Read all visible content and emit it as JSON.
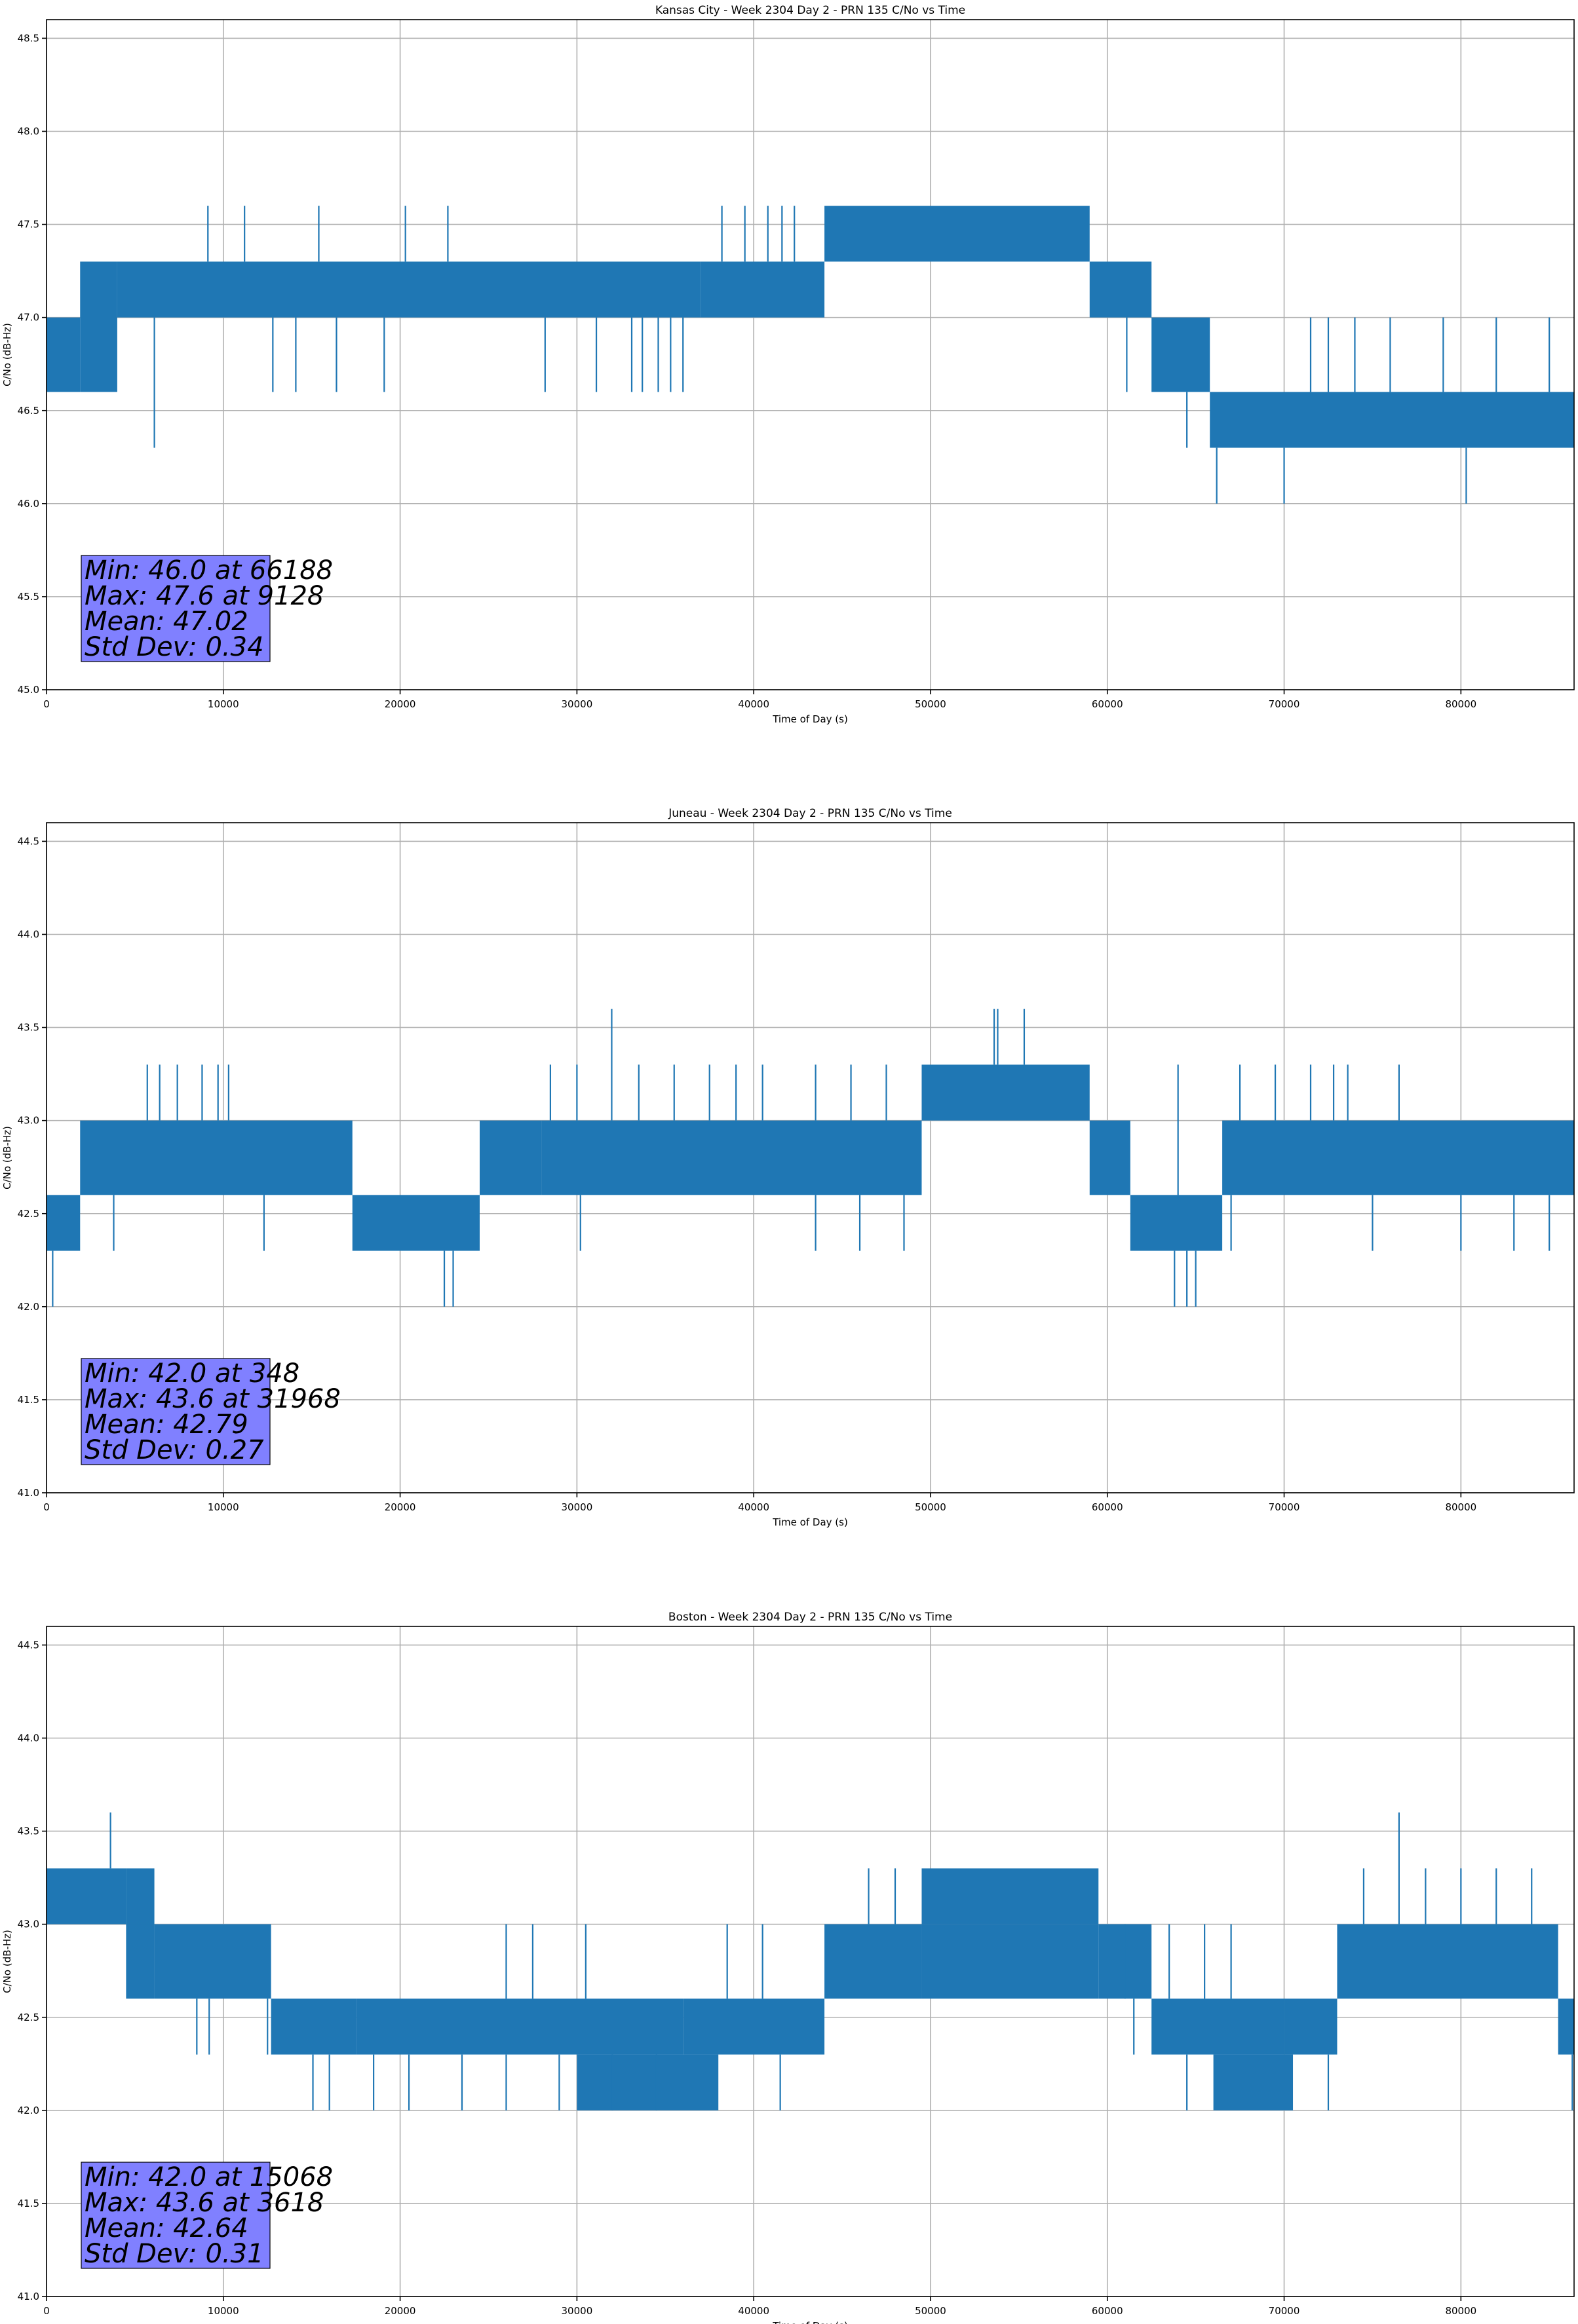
{
  "colors": {
    "line": "#1f77b4",
    "grid": "#b0b0b0",
    "stats_box": "#8080ff",
    "text": "#000000"
  },
  "chart_data": [
    {
      "type": "line",
      "title": "Kansas City - Week 2304 Day 2 - PRN 135 C/No vs Time",
      "xlabel": "Time of Day (s)",
      "ylabel": "C/No (dB-Hz)",
      "xlim": [
        0,
        86400
      ],
      "ylim": [
        45.0,
        48.6
      ],
      "xticks": [
        0,
        10000,
        20000,
        30000,
        40000,
        50000,
        60000,
        70000,
        80000
      ],
      "yticks": [
        45.0,
        45.5,
        46.0,
        46.5,
        47.0,
        47.5,
        48.0,
        48.5
      ],
      "grid": true,
      "stats": [
        "Min: 46.0 at 66188",
        "Max: 47.6 at 9128",
        "Mean: 47.02",
        "Std Dev: 0.34"
      ],
      "segments": [
        {
          "x": [
            0,
            1900
          ],
          "lo": 46.6,
          "hi": 47.0
        },
        {
          "x": [
            1900,
            4000
          ],
          "lo": 46.6,
          "hi": 47.3
        },
        {
          "x": [
            4000,
            37000
          ],
          "lo": 47.0,
          "hi": 47.3
        },
        {
          "x": [
            37000,
            44000
          ],
          "lo": 47.0,
          "hi": 47.3
        },
        {
          "x": [
            44000,
            59000
          ],
          "lo": 47.3,
          "hi": 47.6
        },
        {
          "x": [
            59000,
            62500
          ],
          "lo": 47.0,
          "hi": 47.3
        },
        {
          "x": [
            62500,
            65800
          ],
          "lo": 46.6,
          "hi": 47.0
        },
        {
          "x": [
            65800,
            86400
          ],
          "lo": 46.3,
          "hi": 46.6
        }
      ],
      "spikes": [
        [
          9128,
          47.6
        ],
        [
          11200,
          47.6
        ],
        [
          15400,
          47.6
        ],
        [
          20300,
          47.6
        ],
        [
          22700,
          47.6
        ],
        [
          38200,
          47.6
        ],
        [
          39500,
          47.6
        ],
        [
          40800,
          47.6
        ],
        [
          41600,
          47.6
        ],
        [
          42300,
          47.6
        ],
        [
          6100,
          46.3
        ],
        [
          12800,
          46.6
        ],
        [
          14100,
          46.6
        ],
        [
          16400,
          46.6
        ],
        [
          19100,
          46.6
        ],
        [
          28200,
          46.6
        ],
        [
          31100,
          46.6
        ],
        [
          33100,
          46.6
        ],
        [
          33700,
          46.6
        ],
        [
          34600,
          46.6
        ],
        [
          35300,
          46.6
        ],
        [
          36000,
          46.6
        ],
        [
          61100,
          46.6
        ],
        [
          64500,
          46.3
        ],
        [
          66188,
          46.0
        ],
        [
          70000,
          46.0
        ],
        [
          80300,
          46.0
        ],
        [
          74000,
          47.0
        ],
        [
          76000,
          47.0
        ],
        [
          79000,
          47.0
        ],
        [
          82000,
          47.0
        ],
        [
          85000,
          47.0
        ],
        [
          71500,
          47.0
        ],
        [
          72500,
          47.0
        ],
        [
          85400,
          46.3
        ]
      ]
    },
    {
      "type": "line",
      "title": "Juneau - Week 2304 Day 2 - PRN 135 C/No vs Time",
      "xlabel": "Time of Day (s)",
      "ylabel": "C/No (dB-Hz)",
      "xlim": [
        0,
        86400
      ],
      "ylim": [
        41.0,
        44.6
      ],
      "xticks": [
        0,
        10000,
        20000,
        30000,
        40000,
        50000,
        60000,
        70000,
        80000
      ],
      "yticks": [
        41.0,
        41.5,
        42.0,
        42.5,
        43.0,
        43.5,
        44.0,
        44.5
      ],
      "grid": true,
      "stats": [
        "Min: 42.0 at 348",
        "Max: 43.6 at 31968",
        "Mean: 42.79",
        "Std Dev: 0.27"
      ],
      "segments": [
        {
          "x": [
            0,
            1900
          ],
          "lo": 42.3,
          "hi": 42.6
        },
        {
          "x": [
            1900,
            17300
          ],
          "lo": 42.6,
          "hi": 43.0
        },
        {
          "x": [
            17300,
            24500
          ],
          "lo": 42.3,
          "hi": 42.6
        },
        {
          "x": [
            24500,
            28000
          ],
          "lo": 42.6,
          "hi": 43.0
        },
        {
          "x": [
            28000,
            49500
          ],
          "lo": 42.6,
          "hi": 43.0
        },
        {
          "x": [
            49500,
            59000
          ],
          "lo": 43.0,
          "hi": 43.3
        },
        {
          "x": [
            59000,
            61300
          ],
          "lo": 42.6,
          "hi": 43.0
        },
        {
          "x": [
            61300,
            66500
          ],
          "lo": 42.3,
          "hi": 42.6
        },
        {
          "x": [
            66500,
            86400
          ],
          "lo": 42.6,
          "hi": 43.0
        }
      ],
      "spikes": [
        [
          348,
          42.0
        ],
        [
          5700,
          43.3
        ],
        [
          6400,
          43.3
        ],
        [
          7400,
          43.3
        ],
        [
          8800,
          43.3
        ],
        [
          9700,
          43.3
        ],
        [
          10300,
          43.3
        ],
        [
          28500,
          43.3
        ],
        [
          30000,
          43.3
        ],
        [
          31968,
          43.6
        ],
        [
          33500,
          43.3
        ],
        [
          35500,
          43.3
        ],
        [
          37500,
          43.3
        ],
        [
          39000,
          43.3
        ],
        [
          40500,
          43.3
        ],
        [
          43500,
          43.3
        ],
        [
          45500,
          43.3
        ],
        [
          47500,
          43.3
        ],
        [
          53600,
          43.6
        ],
        [
          53800,
          43.6
        ],
        [
          55300,
          43.6
        ],
        [
          64000,
          43.3
        ],
        [
          67500,
          43.3
        ],
        [
          69500,
          43.3
        ],
        [
          71500,
          43.3
        ],
        [
          72800,
          43.3
        ],
        [
          73600,
          43.3
        ],
        [
          76500,
          43.3
        ],
        [
          3800,
          42.3
        ],
        [
          12300,
          42.3
        ],
        [
          22500,
          42.0
        ],
        [
          23000,
          42.0
        ],
        [
          30200,
          42.3
        ],
        [
          43500,
          42.3
        ],
        [
          46000,
          42.3
        ],
        [
          48500,
          42.3
        ],
        [
          63800,
          42.0
        ],
        [
          64500,
          42.0
        ],
        [
          65000,
          42.0
        ],
        [
          67000,
          42.3
        ],
        [
          75000,
          42.3
        ],
        [
          80000,
          42.3
        ],
        [
          83000,
          42.3
        ],
        [
          85000,
          42.3
        ]
      ]
    },
    {
      "type": "line",
      "title": "Boston - Week 2304 Day 2 - PRN 135 C/No vs Time",
      "xlabel": "Time of Day (s)",
      "ylabel": "C/No (dB-Hz)",
      "xlim": [
        0,
        86400
      ],
      "ylim": [
        41.0,
        44.6
      ],
      "xticks": [
        0,
        10000,
        20000,
        30000,
        40000,
        50000,
        60000,
        70000,
        80000
      ],
      "yticks": [
        41.0,
        41.5,
        42.0,
        42.5,
        43.0,
        43.5,
        44.0,
        44.5
      ],
      "grid": true,
      "stats": [
        "Min: 42.0 at 15068",
        "Max: 43.6 at 3618",
        "Mean: 42.64",
        "Std Dev: 0.31"
      ],
      "segments": [
        {
          "x": [
            0,
            4500
          ],
          "lo": 43.0,
          "hi": 43.3
        },
        {
          "x": [
            4500,
            6100
          ],
          "lo": 42.6,
          "hi": 43.3
        },
        {
          "x": [
            6100,
            12700
          ],
          "lo": 42.6,
          "hi": 43.0
        },
        {
          "x": [
            12700,
            17500
          ],
          "lo": 42.3,
          "hi": 42.6
        },
        {
          "x": [
            17500,
            36000
          ],
          "lo": 42.3,
          "hi": 42.6
        },
        {
          "x": [
            36000,
            44000
          ],
          "lo": 42.3,
          "hi": 42.6
        },
        {
          "x": [
            44000,
            49500
          ],
          "lo": 42.6,
          "hi": 43.0
        },
        {
          "x": [
            49500,
            59500
          ],
          "lo": 42.6,
          "hi": 43.0
        },
        {
          "x": [
            59500,
            62500
          ],
          "lo": 42.6,
          "hi": 43.0
        },
        {
          "x": [
            62500,
            70000
          ],
          "lo": 42.3,
          "hi": 42.6
        },
        {
          "x": [
            70000,
            73000
          ],
          "lo": 42.3,
          "hi": 42.6
        },
        {
          "x": [
            73000,
            85500
          ],
          "lo": 42.6,
          "hi": 43.0
        },
        {
          "x": [
            85500,
            86400
          ],
          "lo": 42.3,
          "hi": 42.6
        }
      ],
      "bands": [
        {
          "x": [
            49500,
            59500
          ],
          "lo": 43.0,
          "hi": 43.3
        },
        {
          "x": [
            66000,
            70500
          ],
          "lo": 42.0,
          "hi": 42.3
        },
        {
          "x": [
            30000,
            38000
          ],
          "lo": 42.0,
          "hi": 42.3
        }
      ],
      "spikes": [
        [
          3618,
          43.6
        ],
        [
          8500,
          42.3
        ],
        [
          9200,
          42.3
        ],
        [
          12500,
          42.3
        ],
        [
          15068,
          42.0
        ],
        [
          16000,
          42.0
        ],
        [
          18500,
          42.0
        ],
        [
          20500,
          42.0
        ],
        [
          23500,
          42.0
        ],
        [
          26000,
          42.0
        ],
        [
          29000,
          42.0
        ],
        [
          32000,
          42.0
        ],
        [
          34500,
          42.0
        ],
        [
          41500,
          42.0
        ],
        [
          43000,
          42.3
        ],
        [
          26000,
          43.0
        ],
        [
          27500,
          43.0
        ],
        [
          30500,
          43.0
        ],
        [
          38500,
          43.0
        ],
        [
          40500,
          43.0
        ],
        [
          46500,
          43.3
        ],
        [
          48000,
          43.3
        ],
        [
          61000,
          43.0
        ],
        [
          63500,
          43.0
        ],
        [
          65500,
          43.0
        ],
        [
          67000,
          43.0
        ],
        [
          61500,
          42.3
        ],
        [
          64500,
          42.0
        ],
        [
          72500,
          42.0
        ],
        [
          74500,
          43.3
        ],
        [
          76500,
          43.6
        ],
        [
          78000,
          43.3
        ],
        [
          80000,
          43.3
        ],
        [
          82000,
          43.3
        ],
        [
          84000,
          43.3
        ],
        [
          85800,
          42.3
        ],
        [
          86300,
          42.0
        ]
      ]
    }
  ]
}
